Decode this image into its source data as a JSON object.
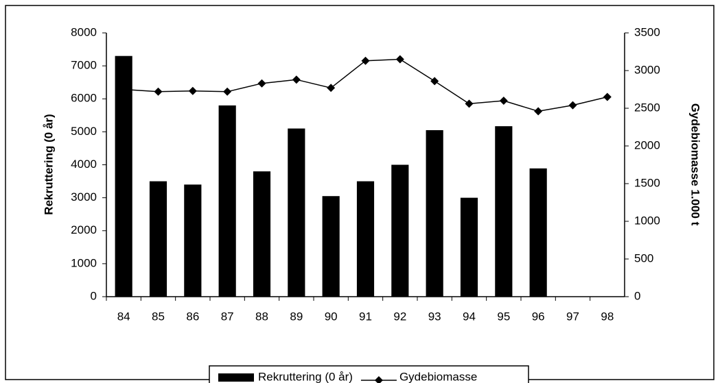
{
  "chart_data": {
    "type": "bar_line",
    "categories": [
      "84",
      "85",
      "86",
      "87",
      "88",
      "89",
      "90",
      "91",
      "92",
      "93",
      "94",
      "95",
      "96",
      "97",
      "98"
    ],
    "ylabel": "Rekruttering (0 år)",
    "y2label": "Gydebiomasse 1.000 t",
    "ylim": [
      0,
      8000
    ],
    "yticks": [
      0,
      1000,
      2000,
      3000,
      4000,
      5000,
      6000,
      7000,
      8000
    ],
    "y2lim": [
      0,
      3500
    ],
    "y2ticks": [
      0,
      500,
      1000,
      1500,
      2000,
      2500,
      3000,
      3500
    ],
    "legend": "bottom",
    "grid": false,
    "series": [
      {
        "name": "Rekruttering (0 år)",
        "type": "bar",
        "color": "#000000",
        "axis": "y",
        "values": [
          7300,
          3500,
          3400,
          5800,
          3800,
          5100,
          3050,
          3500,
          4000,
          5050,
          3000,
          5170,
          3890,
          null,
          null
        ]
      },
      {
        "name": "Gydebiomasse",
        "type": "line",
        "color": "#000000",
        "axis": "y2",
        "values": [
          2750,
          2720,
          2730,
          2720,
          2830,
          2880,
          2770,
          3130,
          3150,
          2860,
          2560,
          2600,
          2460,
          2540,
          2650
        ]
      }
    ]
  }
}
